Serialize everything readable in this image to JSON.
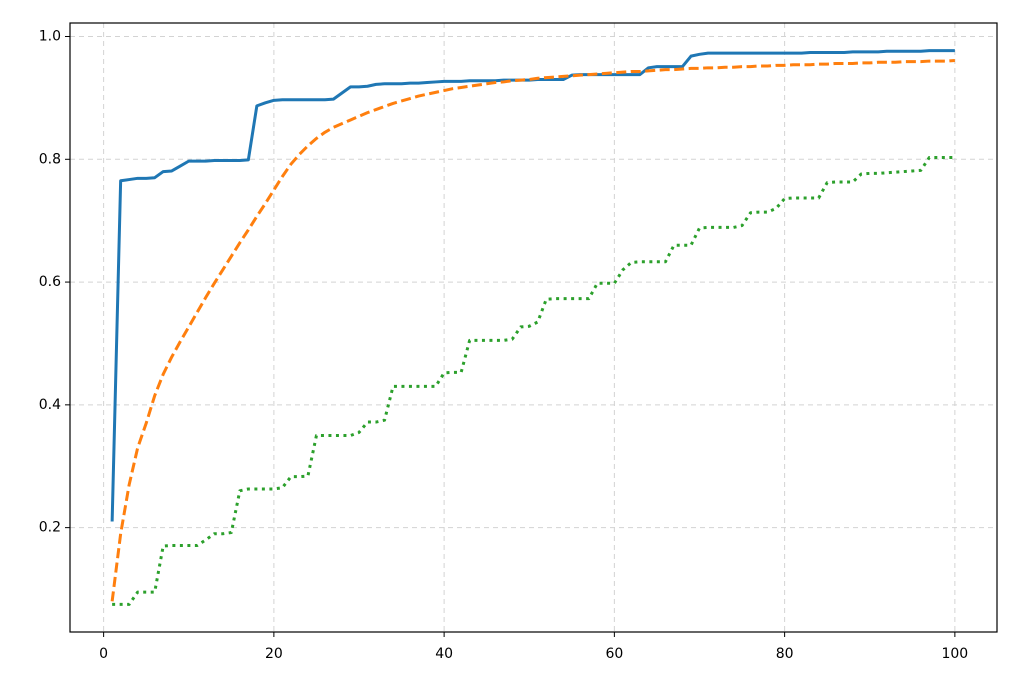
{
  "chart_data": {
    "type": "line",
    "x": [
      1,
      2,
      3,
      4,
      5,
      6,
      7,
      8,
      9,
      10,
      11,
      12,
      13,
      14,
      15,
      16,
      17,
      18,
      19,
      20,
      21,
      22,
      23,
      24,
      25,
      26,
      27,
      28,
      29,
      30,
      31,
      32,
      33,
      34,
      35,
      36,
      37,
      38,
      39,
      40,
      41,
      42,
      43,
      44,
      45,
      46,
      47,
      48,
      49,
      50,
      51,
      52,
      53,
      54,
      55,
      56,
      57,
      58,
      59,
      60,
      61,
      62,
      63,
      64,
      65,
      66,
      67,
      68,
      69,
      70,
      71,
      72,
      73,
      74,
      75,
      76,
      77,
      78,
      79,
      80,
      81,
      82,
      83,
      84,
      85,
      86,
      87,
      88,
      89,
      90,
      91,
      92,
      93,
      94,
      95,
      96,
      97,
      98,
      99,
      100
    ],
    "series": [
      {
        "color": "#1f77b4",
        "style": "solid",
        "values": [
          0.21,
          0.765,
          0.767,
          0.769,
          0.769,
          0.77,
          0.78,
          0.781,
          0.789,
          0.797,
          0.797,
          0.797,
          0.798,
          0.798,
          0.798,
          0.798,
          0.799,
          0.887,
          0.892,
          0.896,
          0.897,
          0.897,
          0.897,
          0.897,
          0.897,
          0.897,
          0.898,
          0.908,
          0.918,
          0.918,
          0.919,
          0.922,
          0.923,
          0.923,
          0.923,
          0.924,
          0.924,
          0.925,
          0.926,
          0.927,
          0.927,
          0.927,
          0.928,
          0.928,
          0.928,
          0.928,
          0.929,
          0.929,
          0.929,
          0.929,
          0.93,
          0.93,
          0.93,
          0.93,
          0.937,
          0.938,
          0.938,
          0.938,
          0.938,
          0.938,
          0.938,
          0.938,
          0.938,
          0.949,
          0.951,
          0.951,
          0.951,
          0.951,
          0.968,
          0.971,
          0.973,
          0.973,
          0.973,
          0.973,
          0.973,
          0.973,
          0.973,
          0.973,
          0.973,
          0.973,
          0.973,
          0.973,
          0.974,
          0.974,
          0.974,
          0.974,
          0.974,
          0.975,
          0.975,
          0.975,
          0.975,
          0.976,
          0.976,
          0.976,
          0.976,
          0.976,
          0.977,
          0.977,
          0.977,
          0.977
        ]
      },
      {
        "color": "#ff7f0e",
        "style": "dashed",
        "values": [
          0.08,
          0.19,
          0.27,
          0.33,
          0.37,
          0.415,
          0.45,
          0.478,
          0.503,
          0.527,
          0.551,
          0.575,
          0.598,
          0.62,
          0.642,
          0.664,
          0.685,
          0.707,
          0.728,
          0.75,
          0.772,
          0.792,
          0.808,
          0.822,
          0.834,
          0.844,
          0.852,
          0.858,
          0.864,
          0.87,
          0.876,
          0.881,
          0.886,
          0.891,
          0.895,
          0.899,
          0.903,
          0.906,
          0.909,
          0.912,
          0.915,
          0.917,
          0.919,
          0.921,
          0.923,
          0.925,
          0.926,
          0.928,
          0.929,
          0.93,
          0.932,
          0.933,
          0.934,
          0.935,
          0.936,
          0.937,
          0.938,
          0.939,
          0.94,
          0.941,
          0.942,
          0.943,
          0.943,
          0.944,
          0.945,
          0.946,
          0.946,
          0.947,
          0.948,
          0.948,
          0.949,
          0.949,
          0.95,
          0.95,
          0.951,
          0.951,
          0.952,
          0.952,
          0.953,
          0.953,
          0.954,
          0.954,
          0.954,
          0.955,
          0.955,
          0.956,
          0.956,
          0.956,
          0.957,
          0.957,
          0.958,
          0.958,
          0.958,
          0.959,
          0.959,
          0.959,
          0.96,
          0.96,
          0.96,
          0.961
        ]
      },
      {
        "color": "#2ca02c",
        "style": "dotted",
        "values": [
          0.075,
          0.075,
          0.075,
          0.095,
          0.095,
          0.095,
          0.17,
          0.171,
          0.171,
          0.171,
          0.171,
          0.18,
          0.19,
          0.19,
          0.192,
          0.26,
          0.263,
          0.263,
          0.263,
          0.263,
          0.265,
          0.283,
          0.283,
          0.284,
          0.35,
          0.35,
          0.35,
          0.35,
          0.35,
          0.355,
          0.372,
          0.372,
          0.375,
          0.43,
          0.43,
          0.43,
          0.43,
          0.43,
          0.43,
          0.452,
          0.453,
          0.453,
          0.505,
          0.505,
          0.505,
          0.505,
          0.505,
          0.507,
          0.527,
          0.528,
          0.535,
          0.572,
          0.573,
          0.573,
          0.573,
          0.573,
          0.573,
          0.598,
          0.598,
          0.598,
          0.62,
          0.632,
          0.633,
          0.633,
          0.633,
          0.633,
          0.66,
          0.66,
          0.66,
          0.688,
          0.689,
          0.689,
          0.689,
          0.689,
          0.692,
          0.713,
          0.714,
          0.714,
          0.72,
          0.736,
          0.737,
          0.737,
          0.737,
          0.737,
          0.762,
          0.763,
          0.763,
          0.763,
          0.776,
          0.777,
          0.777,
          0.778,
          0.779,
          0.78,
          0.781,
          0.782,
          0.803,
          0.803,
          0.803,
          0.803
        ]
      }
    ],
    "xlim": [
      -3.95,
      104.95
    ],
    "ylim": [
      0.03,
      1.022
    ],
    "xticks": [
      0,
      20,
      40,
      60,
      80,
      100
    ],
    "yticks": [
      0.2,
      0.4,
      0.6,
      0.8,
      {
        "value": 1,
        "label": "1.0"
      }
    ],
    "grid": true
  }
}
